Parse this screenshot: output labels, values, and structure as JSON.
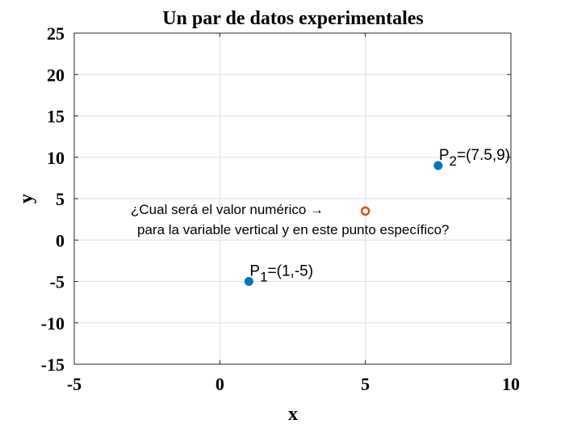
{
  "chart_data": {
    "type": "scatter",
    "title": "Un par de datos experimentales",
    "xlabel": "x",
    "ylabel": "y",
    "xlim": [
      -5,
      10
    ],
    "ylim": [
      -15,
      25
    ],
    "xticks": [
      -5,
      0,
      5,
      10
    ],
    "yticks": [
      -15,
      -10,
      -5,
      0,
      5,
      10,
      15,
      20,
      25
    ],
    "grid": true,
    "series": [
      {
        "color": "#0072bd",
        "marker": "filled-circle",
        "points": [
          {
            "x": 1,
            "y": -5,
            "label_base": "P",
            "label_sub": "1",
            "label_rest": "=(1,-5)"
          },
          {
            "x": 7.5,
            "y": 9,
            "label_base": "P",
            "label_sub": "2",
            "label_rest": "=(7.5,9)"
          }
        ]
      },
      {
        "color": "#d95319",
        "marker": "open-circle",
        "points": [
          {
            "x": 5,
            "y": 3.5
          }
        ]
      }
    ],
    "annotation": {
      "line1": "¿Cual será el valor numérico →",
      "line2": "para la variable vertical y en este punto específico?"
    }
  }
}
